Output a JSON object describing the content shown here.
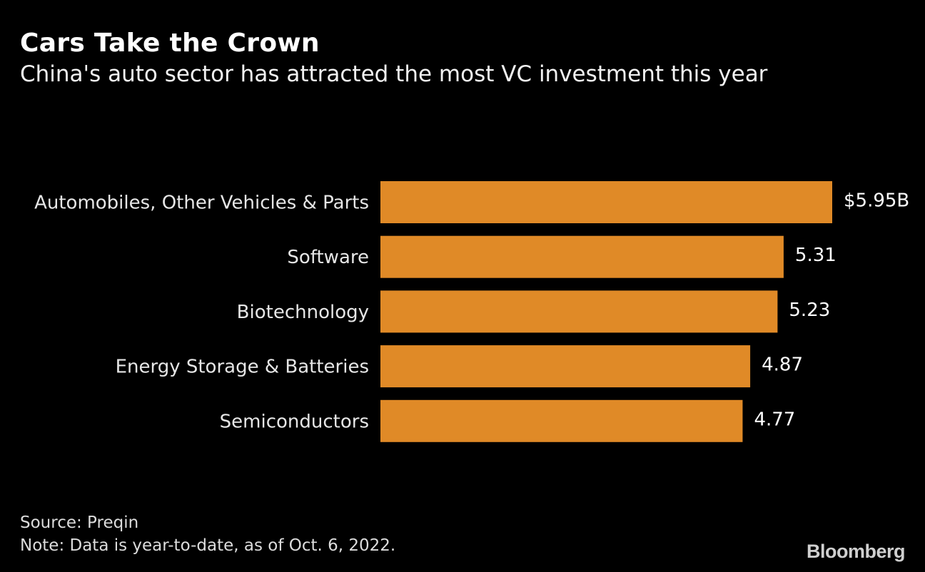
{
  "title": "Cars Take the Crown",
  "subtitle": "China's auto sector has attracted the most VC investment this year",
  "chart_data": {
    "type": "bar",
    "orientation": "horizontal",
    "categories": [
      "Automobiles, Other Vehicles & Parts",
      "Software",
      "Biotechnology",
      "Energy Storage & Batteries",
      "Semiconductors"
    ],
    "values": [
      5.95,
      5.31,
      5.23,
      4.87,
      4.77
    ],
    "value_labels": [
      "$5.95B",
      "5.31",
      "5.23",
      "4.87",
      "4.77"
    ],
    "xlim": [
      0,
      5.95
    ],
    "bar_color": "#E08A27",
    "grid": false
  },
  "footer": {
    "source": "Source: Preqin",
    "note": "Note: Data is year-to-date, as of Oct. 6, 2022."
  },
  "brand": "Bloomberg"
}
